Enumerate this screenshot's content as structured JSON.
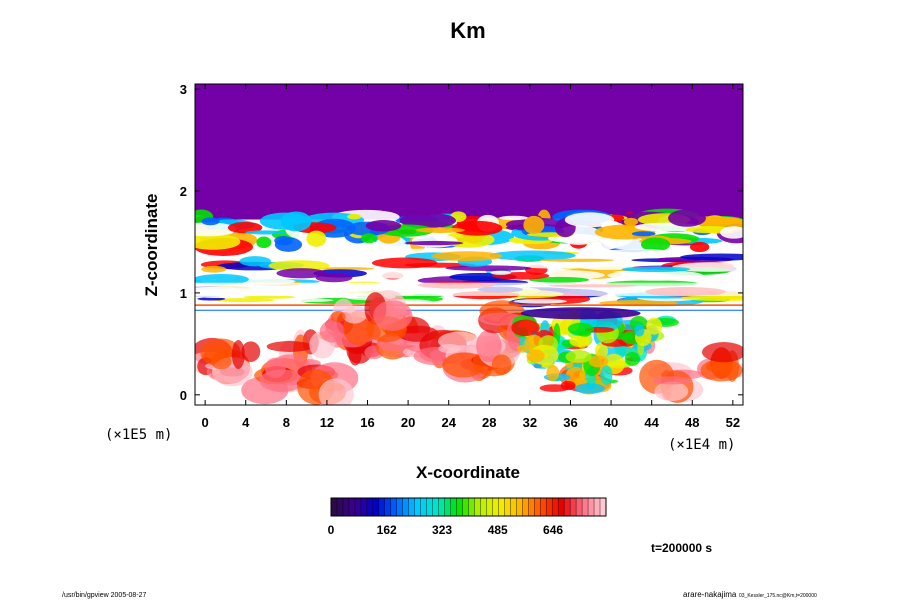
{
  "chart_data": {
    "type": "heatmap",
    "title": "Km",
    "xlabel": "X-coordinate",
    "ylabel": "Z-coordinate",
    "x_ticks": [
      "0",
      "4",
      "8",
      "12",
      "16",
      "20",
      "24",
      "28",
      "32",
      "36",
      "40",
      "44",
      "48",
      "52"
    ],
    "x_tick_values": [
      0,
      4,
      8,
      12,
      16,
      20,
      24,
      28,
      32,
      36,
      40,
      44,
      48,
      52
    ],
    "x_range": [
      -1,
      53
    ],
    "x_scale_label": "(×1E4 m)",
    "y_ticks": [
      "0",
      "1",
      "2",
      "3"
    ],
    "y_tick_values": [
      0,
      1,
      2,
      3
    ],
    "y_range": [
      -0.1,
      3.05
    ],
    "y_scale_label": "(×1E5 m)",
    "colorbar": {
      "ticks": [
        "0",
        "162",
        "323",
        "485",
        "646"
      ],
      "tick_values": [
        0,
        162,
        323,
        485,
        646
      ],
      "range": [
        0,
        800
      ],
      "colormap": [
        "#2b0a4a",
        "#3a0090",
        "#0000c8",
        "#0064ff",
        "#00c8ff",
        "#00e6c8",
        "#00e000",
        "#b4f000",
        "#f0f000",
        "#ffb400",
        "#ff5000",
        "#e60000",
        "#ff6e82",
        "#ffc8d2"
      ]
    },
    "fields": {
      "background_top_color": "#7400a8",
      "background_top_z_from": 1.72,
      "lower_layer_color": "#ffffff"
    },
    "time_label": "t=200000 s"
  },
  "footer": {
    "left": "/usr/bin/gpview 2005-08-27",
    "right_user": "arare-nakajima",
    "right_file": "03_Kessler_175.nc@Km,t=200000"
  }
}
